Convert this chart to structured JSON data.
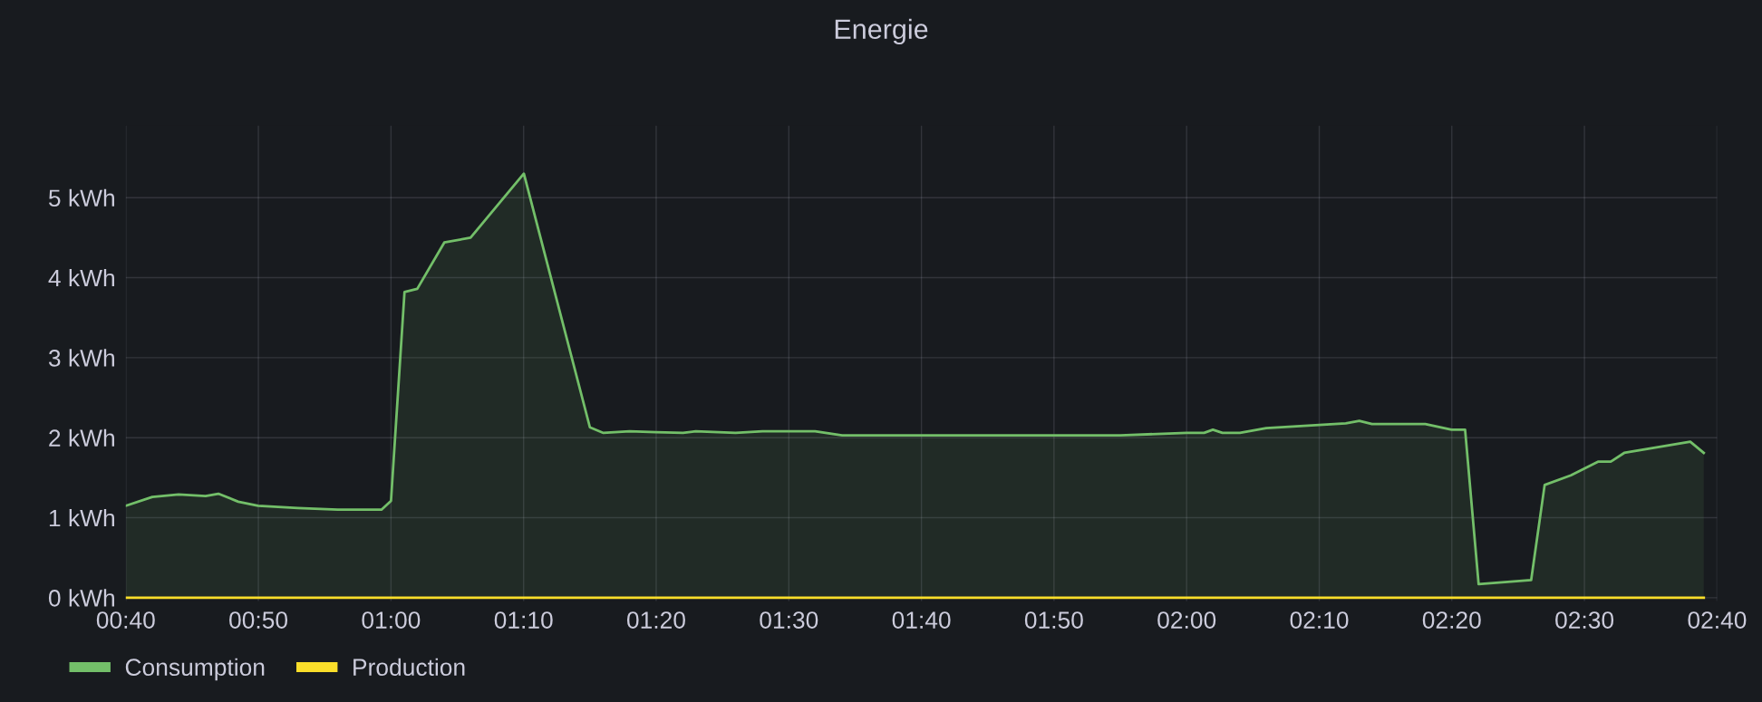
{
  "chart_data": {
    "type": "area",
    "title": "Energie",
    "xlim": [
      0.6667,
      2.6667
    ],
    "xticks": [
      {
        "value": 0.6667,
        "label": "00:40"
      },
      {
        "value": 0.8333,
        "label": "00:50"
      },
      {
        "value": 1.0,
        "label": "01:00"
      },
      {
        "value": 1.1667,
        "label": "01:10"
      },
      {
        "value": 1.3333,
        "label": "01:20"
      },
      {
        "value": 1.5,
        "label": "01:30"
      },
      {
        "value": 1.6667,
        "label": "01:40"
      },
      {
        "value": 1.8333,
        "label": "01:50"
      },
      {
        "value": 2.0,
        "label": "02:00"
      },
      {
        "value": 2.1667,
        "label": "02:10"
      },
      {
        "value": 2.3333,
        "label": "02:20"
      },
      {
        "value": 2.5,
        "label": "02:30"
      },
      {
        "value": 2.6667,
        "label": "02:40"
      }
    ],
    "ylim": [
      -0.04,
      5.9
    ],
    "yticks": [
      {
        "value": 0,
        "label": "0 kWh"
      },
      {
        "value": 1,
        "label": "1 kWh"
      },
      {
        "value": 2,
        "label": "2 kWh"
      },
      {
        "value": 3,
        "label": "3 kWh"
      },
      {
        "value": 4,
        "label": "4 kWh"
      },
      {
        "value": 5,
        "label": "5 kWh"
      }
    ],
    "grid": true,
    "legend": "bottom left",
    "series": [
      {
        "name": "Consumption",
        "color": "#73bf69",
        "x": [
          0.667,
          0.7,
          0.733,
          0.767,
          0.783,
          0.808,
          0.833,
          0.883,
          0.933,
          0.988,
          1.0,
          1.017,
          1.033,
          1.067,
          1.1,
          1.167,
          1.25,
          1.267,
          1.3,
          1.333,
          1.367,
          1.383,
          1.433,
          1.467,
          1.533,
          1.567,
          1.917,
          2.0,
          2.022,
          2.033,
          2.045,
          2.067,
          2.1,
          2.2,
          2.217,
          2.233,
          2.3,
          2.333,
          2.35,
          2.367,
          2.433,
          2.45,
          2.483,
          2.517,
          2.533,
          2.55,
          2.633,
          2.65
        ],
        "values": [
          1.15,
          1.26,
          1.29,
          1.27,
          1.3,
          1.2,
          1.15,
          1.12,
          1.1,
          1.1,
          1.21,
          3.82,
          3.86,
          4.44,
          4.5,
          5.3,
          2.13,
          2.06,
          2.08,
          2.07,
          2.06,
          2.08,
          2.06,
          2.08,
          2.08,
          2.03,
          2.03,
          2.06,
          2.06,
          2.1,
          2.06,
          2.06,
          2.12,
          2.18,
          2.21,
          2.17,
          2.17,
          2.1,
          2.1,
          0.17,
          0.22,
          1.41,
          1.53,
          1.7,
          1.7,
          1.81,
          1.95,
          1.81
        ]
      },
      {
        "name": "Production",
        "type": "line",
        "color": "#fade2a",
        "x": [
          0.667,
          2.65
        ],
        "values": [
          0,
          0
        ]
      }
    ]
  }
}
